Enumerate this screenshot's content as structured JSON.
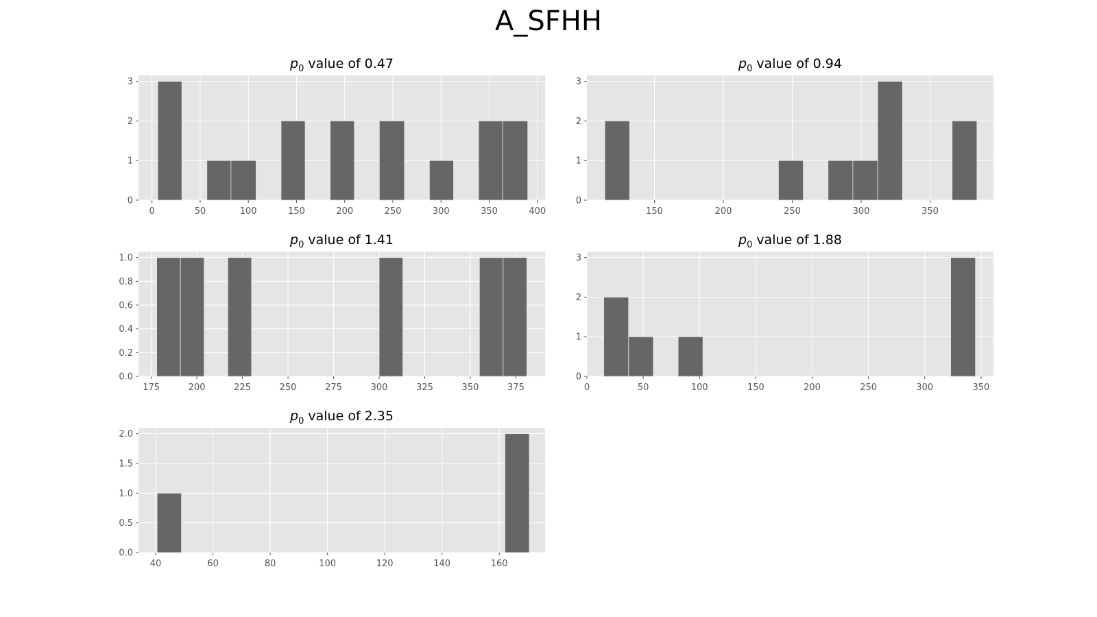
{
  "figure": {
    "title": "A_SFHH"
  },
  "colors": {
    "panel_bg": "#e5e5e5",
    "bar": "#666666",
    "bar_edge": "#e5e5e5",
    "grid": "#ffffff",
    "tick_text": "#555555",
    "title_text": "#000000"
  },
  "chart_data": [
    {
      "type": "bar",
      "title_prefix": "p",
      "title_subscript": "0",
      "title_suffix": " value of 0.47",
      "xlim": [
        -14,
        408
      ],
      "ylim": [
        0,
        3.15
      ],
      "xticks": [
        0,
        50,
        100,
        150,
        200,
        250,
        300,
        350,
        400
      ],
      "yticks": [
        0,
        1,
        2,
        3
      ],
      "bars": [
        {
          "x0": 6,
          "x1": 31,
          "value": 3
        },
        {
          "x0": 57,
          "x1": 82,
          "value": 1
        },
        {
          "x0": 82,
          "x1": 108,
          "value": 1
        },
        {
          "x0": 134,
          "x1": 159,
          "value": 2
        },
        {
          "x0": 185,
          "x1": 210,
          "value": 2
        },
        {
          "x0": 236,
          "x1": 262,
          "value": 2
        },
        {
          "x0": 288,
          "x1": 313,
          "value": 1
        },
        {
          "x0": 339,
          "x1": 364,
          "value": 2
        },
        {
          "x0": 364,
          "x1": 390,
          "value": 2
        }
      ]
    },
    {
      "type": "bar",
      "title_prefix": "p",
      "title_subscript": "0",
      "title_suffix": " value of 0.94",
      "xlim": [
        101,
        396
      ],
      "ylim": [
        0,
        3.15
      ],
      "xticks": [
        150,
        200,
        250,
        300,
        350
      ],
      "yticks": [
        0,
        1,
        2,
        3
      ],
      "bars": [
        {
          "x0": 114,
          "x1": 132,
          "value": 2
        },
        {
          "x0": 240,
          "x1": 258,
          "value": 1
        },
        {
          "x0": 276,
          "x1": 294,
          "value": 1
        },
        {
          "x0": 294,
          "x1": 312,
          "value": 1
        },
        {
          "x0": 312,
          "x1": 330,
          "value": 3
        },
        {
          "x0": 366,
          "x1": 384,
          "value": 2
        }
      ]
    },
    {
      "type": "bar",
      "title_prefix": "p",
      "title_subscript": "0",
      "title_suffix": " value of 1.41",
      "xlim": [
        168,
        391
      ],
      "ylim": [
        0,
        1.05
      ],
      "xticks": [
        175,
        200,
        225,
        250,
        275,
        300,
        325,
        350,
        375
      ],
      "yticks": [
        0.0,
        0.2,
        0.4,
        0.6,
        0.8,
        1.0
      ],
      "ytick_labels": [
        "0.0",
        "0.2",
        "0.4",
        "0.6",
        "0.8",
        "1.0"
      ],
      "bars": [
        {
          "x0": 178,
          "x1": 191,
          "value": 1
        },
        {
          "x0": 191,
          "x1": 204,
          "value": 1
        },
        {
          "x0": 217,
          "x1": 230,
          "value": 1
        },
        {
          "x0": 300,
          "x1": 313,
          "value": 1
        },
        {
          "x0": 355,
          "x1": 368,
          "value": 1
        },
        {
          "x0": 368,
          "x1": 381,
          "value": 1
        }
      ]
    },
    {
      "type": "bar",
      "title_prefix": "p",
      "title_subscript": "0",
      "title_suffix": " value of 1.88",
      "xlim": [
        0,
        361
      ],
      "ylim": [
        0,
        3.15
      ],
      "xticks": [
        0,
        50,
        100,
        150,
        200,
        250,
        300,
        350
      ],
      "yticks": [
        0,
        1,
        2,
        3
      ],
      "bars": [
        {
          "x0": 15,
          "x1": 37,
          "value": 2
        },
        {
          "x0": 37,
          "x1": 59,
          "value": 1
        },
        {
          "x0": 81,
          "x1": 103,
          "value": 1
        },
        {
          "x0": 323,
          "x1": 345,
          "value": 3
        }
      ]
    },
    {
      "type": "bar",
      "title_prefix": "p",
      "title_subscript": "0",
      "title_suffix": " value of 2.35",
      "xlim": [
        34,
        176
      ],
      "ylim": [
        0,
        2.1
      ],
      "xticks": [
        40,
        60,
        80,
        100,
        120,
        140,
        160
      ],
      "yticks": [
        0.0,
        0.5,
        1.0,
        1.5,
        2.0
      ],
      "ytick_labels": [
        "0.0",
        "0.5",
        "1.0",
        "1.5",
        "2.0"
      ],
      "bars": [
        {
          "x0": 40.5,
          "x1": 49,
          "value": 1
        },
        {
          "x0": 162,
          "x1": 170.5,
          "value": 2
        }
      ]
    }
  ]
}
